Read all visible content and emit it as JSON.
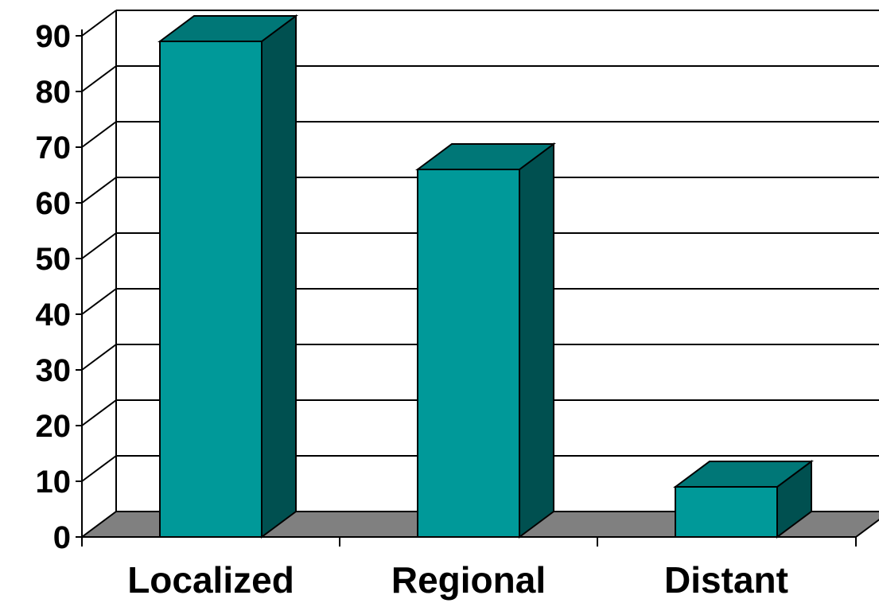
{
  "chart_data": {
    "type": "bar",
    "categories": [
      "Localized",
      "Regional",
      "Distant"
    ],
    "values": [
      89,
      66,
      9
    ],
    "title": "",
    "xlabel": "",
    "ylabel": "",
    "ylim": [
      0,
      90
    ],
    "yticks": [
      0,
      10,
      20,
      30,
      40,
      50,
      60,
      70,
      80,
      90
    ],
    "grid": true,
    "legend": "none",
    "style": "3d-column",
    "colors": {
      "bar_front": "#009999",
      "bar_top": "#007777",
      "bar_side": "#005050",
      "floor": "#808080",
      "wall": "#ffffff",
      "grid": "#000000"
    }
  }
}
